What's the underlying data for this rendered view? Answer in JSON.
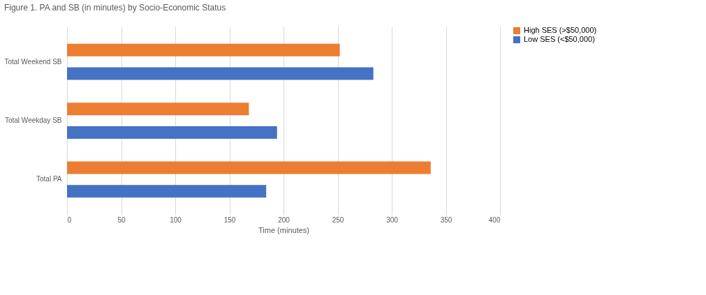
{
  "chart_data": {
    "type": "bar",
    "orientation": "horizontal",
    "title": "Figure 1. PA and SB (in minutes) by Socio-Economic Status",
    "xlabel": "Time (minutes)",
    "categories": [
      "Total Weekend SB",
      "Total Weekday SB",
      "Total PA"
    ],
    "series": [
      {
        "name": "High SES (>$50,000)",
        "color": "#ed7d31",
        "values": [
          252,
          168,
          336
        ]
      },
      {
        "name": "Low SES (<$50,000)",
        "color": "#4472c4",
        "values": [
          283,
          194,
          184
        ]
      }
    ],
    "xlim": [
      0,
      400
    ],
    "xticks": [
      0,
      50,
      100,
      150,
      200,
      250,
      300,
      350,
      400
    ],
    "grid": "x",
    "legend": "right"
  }
}
